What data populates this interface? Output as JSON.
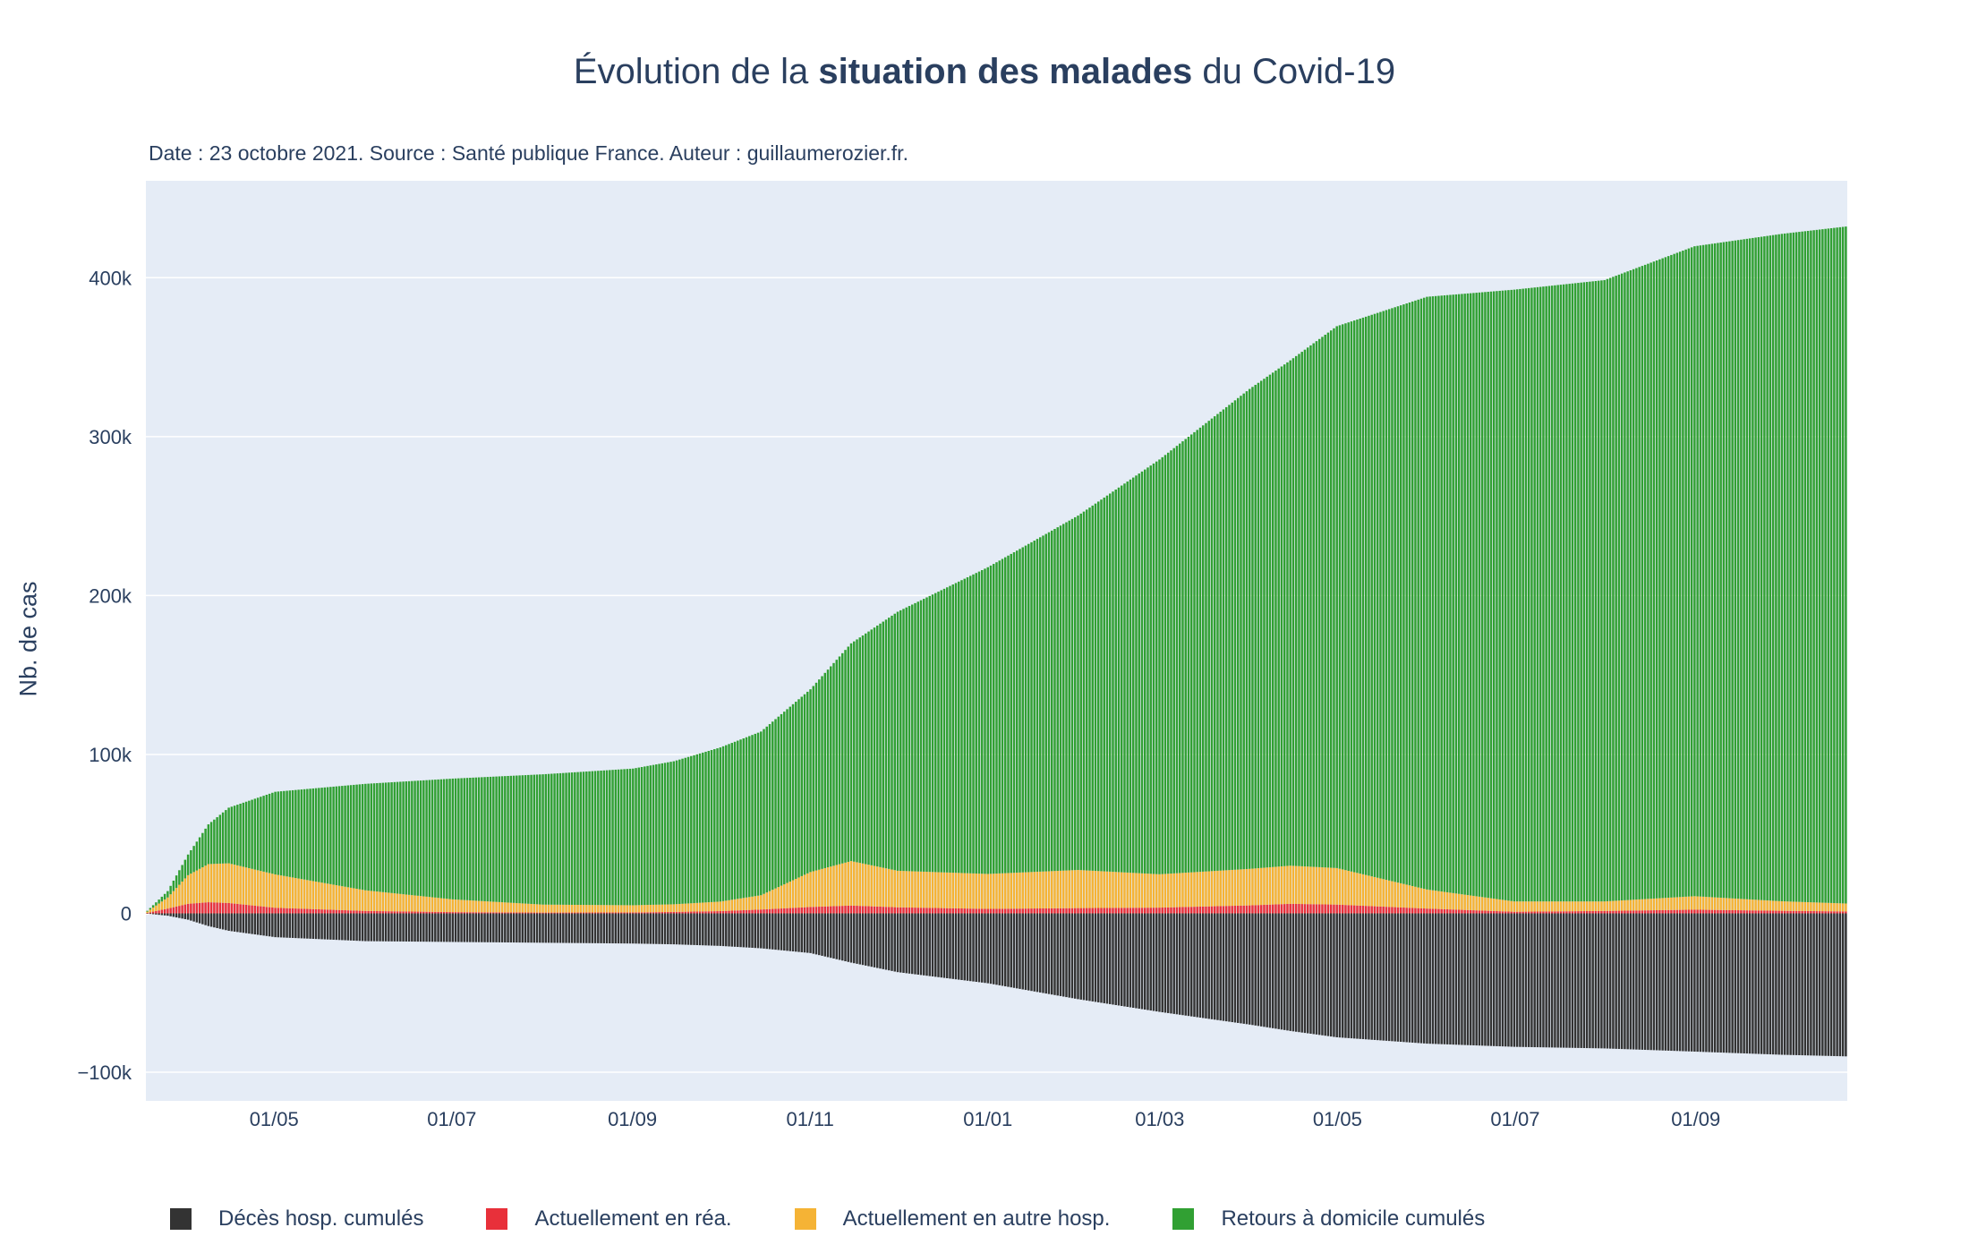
{
  "title": {
    "prefix": "Évolution de la ",
    "bold": "situation des malades",
    "suffix": " du Covid-19"
  },
  "subtitle": "Date : 23 octobre 2021. Source : Santé publique France. Auteur : guillaumerozier.fr.",
  "colors": {
    "plot_bg": "#e5ecf6",
    "grid": "#ffffff",
    "deces": "#333333",
    "rea": "#e8303a",
    "hosp": "#f5b335",
    "retours": "#31a033"
  },
  "chart_data": {
    "type": "bar",
    "stacked": true,
    "ylabel": "Nb. de cas",
    "ylim": [
      -118000,
      461000
    ],
    "yticks": [
      -100000,
      0,
      100000,
      200000,
      300000,
      400000
    ],
    "ytick_labels": [
      "−100k",
      "0",
      "100k",
      "200k",
      "300k",
      "400k"
    ],
    "xlim": [
      "2020-03-18",
      "2021-10-23"
    ],
    "xticks": [
      "2020-05-01",
      "2020-07-01",
      "2020-09-01",
      "2020-11-01",
      "2021-01-01",
      "2021-03-01",
      "2021-05-01",
      "2021-07-01",
      "2021-09-01"
    ],
    "xtick_labels": [
      "01/05",
      "01/07",
      "01/09",
      "01/11",
      "01/01",
      "01/03",
      "01/05",
      "01/07",
      "01/09"
    ],
    "legend_position": "bottom",
    "anchor_dates": [
      "2020-03-18",
      "2020-03-25",
      "2020-04-01",
      "2020-04-08",
      "2020-04-15",
      "2020-05-01",
      "2020-06-01",
      "2020-07-01",
      "2020-08-01",
      "2020-09-01",
      "2020-09-15",
      "2020-10-01",
      "2020-10-15",
      "2020-11-01",
      "2020-11-15",
      "2020-12-01",
      "2021-01-01",
      "2021-02-01",
      "2021-03-01",
      "2021-04-01",
      "2021-04-15",
      "2021-05-01",
      "2021-06-01",
      "2021-07-01",
      "2021-08-01",
      "2021-09-01",
      "2021-10-01",
      "2021-10-23"
    ],
    "series": [
      {
        "name": "Décès hosp. cumulés",
        "color": "#333333",
        "values": [
          -200,
          -1500,
          -4000,
          -8000,
          -11000,
          -15000,
          -17500,
          -18000,
          -18500,
          -19000,
          -19500,
          -20500,
          -22000,
          -25000,
          -31000,
          -37000,
          -44000,
          -54000,
          -62000,
          -70000,
          -74000,
          -78000,
          -82000,
          -84000,
          -85000,
          -87000,
          -89000,
          -90000
        ]
      },
      {
        "name": "Actuellement en réa.",
        "color": "#e8303a",
        "values": [
          300,
          3000,
          6000,
          7000,
          6500,
          3500,
          1500,
          800,
          500,
          600,
          900,
          1400,
          2400,
          4000,
          4900,
          3800,
          2800,
          3300,
          3600,
          5000,
          6000,
          5500,
          3000,
          1000,
          1500,
          2300,
          1600,
          1200
        ]
      },
      {
        "name": "Actuellement en autre hosp.",
        "color": "#f5b335",
        "values": [
          800,
          7000,
          18000,
          24000,
          25000,
          21000,
          13000,
          8000,
          5000,
          4500,
          4800,
          6000,
          9000,
          22000,
          28000,
          23000,
          22000,
          24000,
          21000,
          23000,
          24000,
          23000,
          12000,
          6500,
          6000,
          8500,
          6000,
          5000
        ]
      },
      {
        "name": "Retours à domicile cumulés",
        "color": "#31a033",
        "values": [
          500,
          4000,
          13000,
          25000,
          35000,
          52000,
          67000,
          76000,
          82000,
          86000,
          90000,
          97000,
          103000,
          115000,
          137000,
          163000,
          193000,
          223000,
          261000,
          302000,
          318000,
          341000,
          373000,
          385000,
          391000,
          409000,
          420000,
          426000
        ]
      }
    ]
  }
}
